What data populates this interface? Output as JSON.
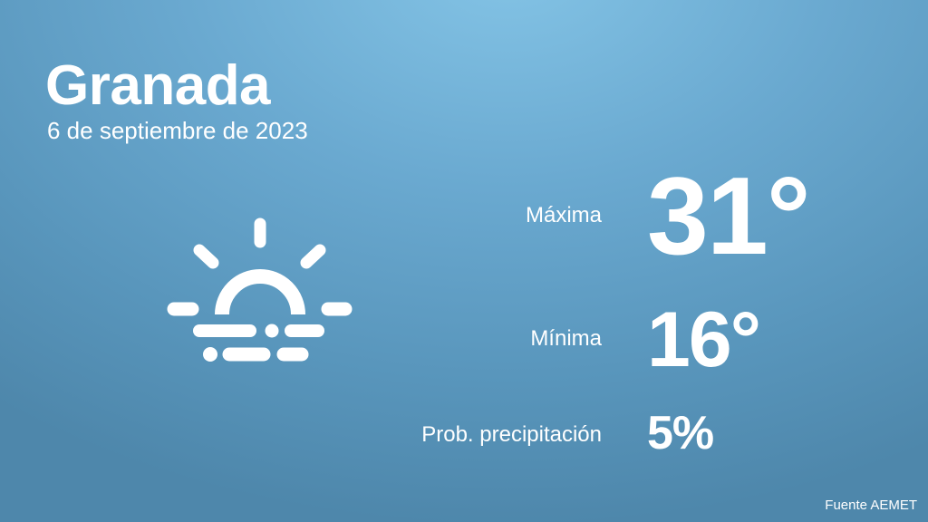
{
  "location": {
    "city": "Granada",
    "date": "6 de septiembre de 2023"
  },
  "weather_icon": "sunrise-fog-icon",
  "forecast": {
    "max_label": "Máxima",
    "max_value": "31°",
    "min_label": "Mínima",
    "min_value": "16°",
    "prob_label": "Prob. precipitación",
    "prob_value": "5%"
  },
  "source": "Fuente AEMET",
  "colors": {
    "background_top": "#84c4e6",
    "background_bottom": "#4e87ab",
    "text": "#ffffff"
  }
}
